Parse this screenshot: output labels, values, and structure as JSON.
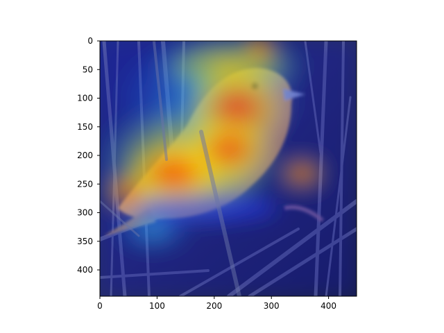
{
  "figure": {
    "image_description_alt": "Sparrow perched among reeds with Grad-CAM style heatmap overlay",
    "colormap": "jet",
    "heatmap_hot_spots": [
      "bird head",
      "bird breast",
      "bird back and wing",
      "tail base"
    ],
    "colors": {
      "background_dark": "#1b2450",
      "reed_color": "#7f88b8",
      "bird_warm": "#e8a14d",
      "heat_red": "#ff2a00",
      "heat_yellow": "#ffe600",
      "heat_cyan": "#30d0ff",
      "heat_blue": "#1420b0"
    }
  },
  "axes": {
    "x_ticks": [
      "0",
      "100",
      "200",
      "300",
      "400"
    ],
    "y_ticks": [
      "0",
      "50",
      "100",
      "150",
      "200",
      "250",
      "300",
      "350",
      "400"
    ]
  }
}
